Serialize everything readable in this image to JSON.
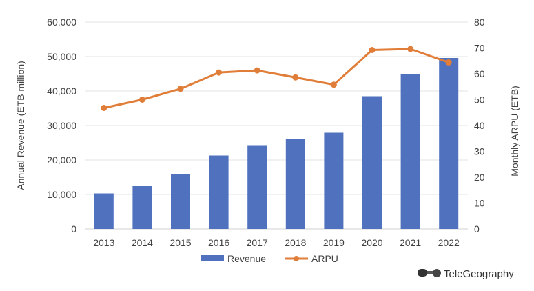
{
  "chart_data": {
    "type": "bar+line",
    "categories": [
      "2013",
      "2014",
      "2015",
      "2016",
      "2017",
      "2018",
      "2019",
      "2020",
      "2021",
      "2022"
    ],
    "series": [
      {
        "name": "Revenue",
        "type": "bar",
        "axis": "left",
        "color": "#4F71BE",
        "values": [
          10300,
          12400,
          16000,
          21300,
          24100,
          26100,
          27900,
          38500,
          44900,
          49600
        ]
      },
      {
        "name": "ARPU",
        "type": "line",
        "axis": "right",
        "color": "#E07E39",
        "values": [
          46.8,
          50.0,
          54.2,
          60.5,
          61.3,
          58.6,
          55.8,
          69.2,
          69.6,
          64.4
        ]
      }
    ],
    "ylabel": "Annual Revenue (ETB million)",
    "y2label": "Monthly ARPU (ETB)",
    "ylim": [
      0,
      60000
    ],
    "y2lim": [
      0,
      80
    ],
    "yticks": [
      "0",
      "10,000",
      "20,000",
      "30,000",
      "40,000",
      "50,000",
      "60,000"
    ],
    "y2ticks": [
      "0",
      "10",
      "20",
      "30",
      "40",
      "50",
      "60",
      "70",
      "80"
    ],
    "grid": true,
    "legend": "bottom"
  },
  "branding": {
    "logo_text": "TeleGeography"
  }
}
